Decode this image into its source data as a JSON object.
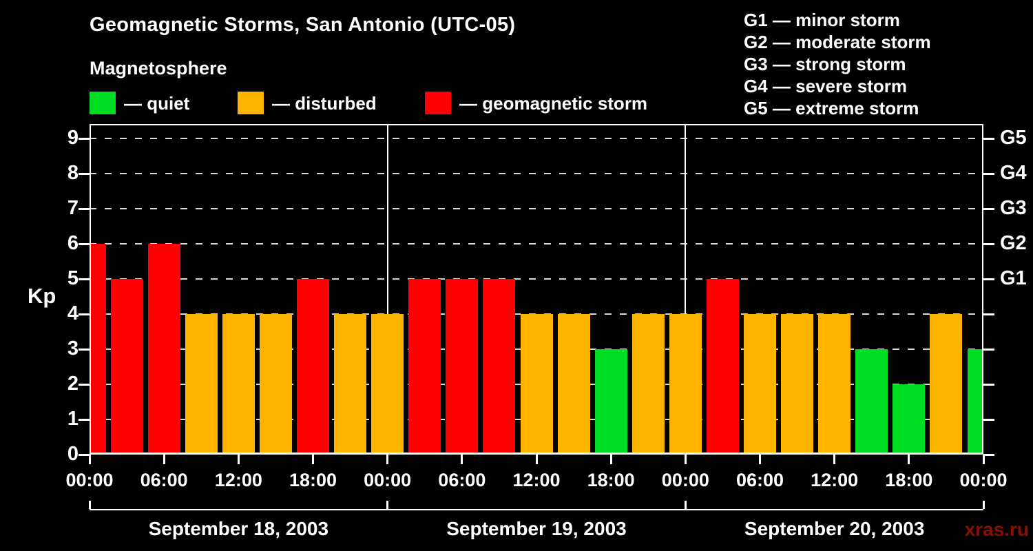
{
  "header": {
    "title": "Geomagnetic Storms, San Antonio (UTC-05)",
    "subtitle": "Magnetosphere",
    "legend": [
      {
        "key": "quiet",
        "label": "— quiet"
      },
      {
        "key": "disturbed",
        "label": "— disturbed"
      },
      {
        "key": "storm",
        "label": "— geomagnetic storm"
      }
    ],
    "g_scale_legend": [
      "G1 — minor storm",
      "G2 — moderate storm",
      "G3 — strong storm",
      "G4 — severe storm",
      "G5 — extreme storm"
    ]
  },
  "watermark": "xras.ru",
  "colors": {
    "background": "#000000",
    "text": "#ffffff",
    "axis": "#ffffff",
    "quiet": "#00dd22",
    "disturbed": "#ffb400",
    "storm": "#ff0000",
    "watermark": "#8b0f00"
  },
  "chart_data": {
    "type": "bar",
    "title": "Geomagnetic Storms, San Antonio (UTC-05)",
    "ylabel": "Kp",
    "xlabel": "",
    "ylim": [
      0,
      9.4
    ],
    "yticks": [
      0,
      1,
      2,
      3,
      4,
      5,
      6,
      7,
      8,
      9
    ],
    "grid": "dashed horizontal gridlines at integer Kp levels",
    "legend_position": "top-left",
    "right_axis": [
      {
        "kp": 5,
        "label": "G1"
      },
      {
        "kp": 6,
        "label": "G2"
      },
      {
        "kp": 7,
        "label": "G3"
      },
      {
        "kp": 8,
        "label": "G4"
      },
      {
        "kp": 9,
        "label": "G5"
      }
    ],
    "x_time_ticks": [
      "00:00",
      "06:00",
      "12:00",
      "18:00",
      "00:00",
      "06:00",
      "12:00",
      "18:00",
      "00:00",
      "06:00",
      "12:00",
      "18:00",
      "00:00"
    ],
    "days": [
      {
        "label": "September 18, 2003"
      },
      {
        "label": "September 19, 2003"
      },
      {
        "label": "September 20, 2003"
      }
    ],
    "bars": [
      {
        "t": "2003-09-18 00:00",
        "kp": 6,
        "cat": "storm"
      },
      {
        "t": "2003-09-18 03:00",
        "kp": 5,
        "cat": "storm"
      },
      {
        "t": "2003-09-18 06:00",
        "kp": 6,
        "cat": "storm"
      },
      {
        "t": "2003-09-18 09:00",
        "kp": 4,
        "cat": "disturbed"
      },
      {
        "t": "2003-09-18 12:00",
        "kp": 4,
        "cat": "disturbed"
      },
      {
        "t": "2003-09-18 15:00",
        "kp": 4,
        "cat": "disturbed"
      },
      {
        "t": "2003-09-18 18:00",
        "kp": 5,
        "cat": "storm"
      },
      {
        "t": "2003-09-18 21:00",
        "kp": 4,
        "cat": "disturbed"
      },
      {
        "t": "2003-09-19 00:00",
        "kp": 4,
        "cat": "disturbed"
      },
      {
        "t": "2003-09-19 03:00",
        "kp": 5,
        "cat": "storm"
      },
      {
        "t": "2003-09-19 06:00",
        "kp": 5,
        "cat": "storm"
      },
      {
        "t": "2003-09-19 09:00",
        "kp": 5,
        "cat": "storm"
      },
      {
        "t": "2003-09-19 12:00",
        "kp": 4,
        "cat": "disturbed"
      },
      {
        "t": "2003-09-19 15:00",
        "kp": 4,
        "cat": "disturbed"
      },
      {
        "t": "2003-09-19 18:00",
        "kp": 3,
        "cat": "quiet"
      },
      {
        "t": "2003-09-19 21:00",
        "kp": 4,
        "cat": "disturbed"
      },
      {
        "t": "2003-09-20 00:00",
        "kp": 4,
        "cat": "disturbed"
      },
      {
        "t": "2003-09-20 03:00",
        "kp": 5,
        "cat": "storm"
      },
      {
        "t": "2003-09-20 06:00",
        "kp": 4,
        "cat": "disturbed"
      },
      {
        "t": "2003-09-20 09:00",
        "kp": 4,
        "cat": "disturbed"
      },
      {
        "t": "2003-09-20 12:00",
        "kp": 4,
        "cat": "disturbed"
      },
      {
        "t": "2003-09-20 15:00",
        "kp": 3,
        "cat": "quiet"
      },
      {
        "t": "2003-09-20 18:00",
        "kp": 2,
        "cat": "quiet"
      },
      {
        "t": "2003-09-20 21:00",
        "kp": 4,
        "cat": "disturbed"
      },
      {
        "t": "2003-09-21 00:00",
        "kp": 3,
        "cat": "quiet"
      }
    ]
  }
}
